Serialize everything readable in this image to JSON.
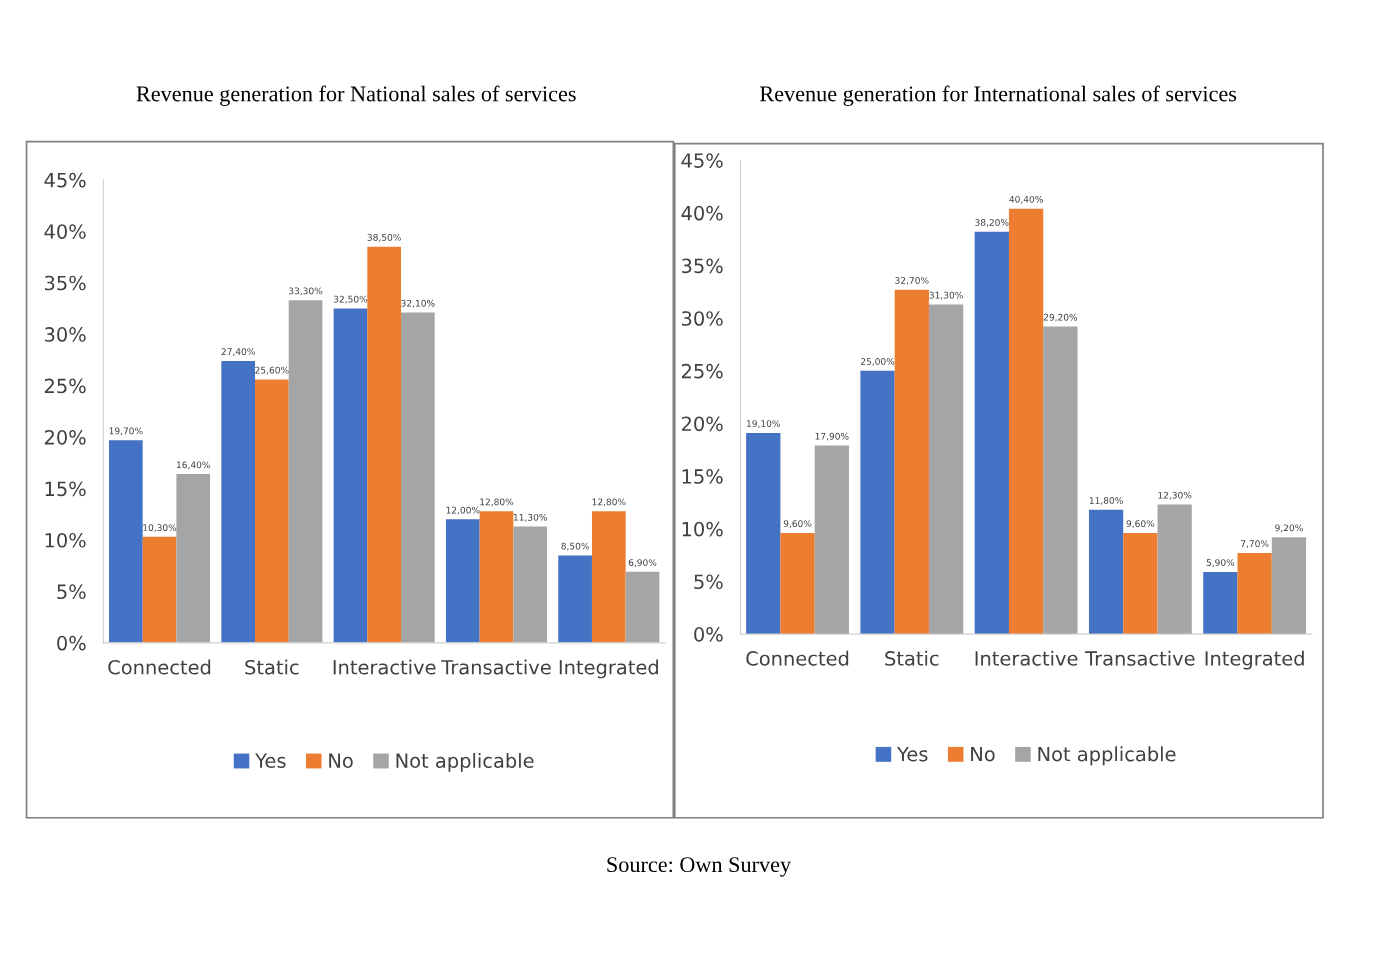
{
  "chart_data": [
    {
      "type": "bar",
      "title": "Revenue generation for National sales of services",
      "categories": [
        "Connected",
        "Static",
        "Interactive",
        "Transactive",
        "Integrated"
      ],
      "ylim": [
        0,
        45
      ],
      "yticks": [
        {
          "value": 0,
          "label": "0%"
        },
        {
          "value": 5,
          "label": "5%"
        },
        {
          "value": 10,
          "label": "10%"
        },
        {
          "value": 15,
          "label": "15%"
        },
        {
          "value": 20,
          "label": "20%"
        },
        {
          "value": 25,
          "label": "25%"
        },
        {
          "value": 30,
          "label": "30%"
        },
        {
          "value": 35,
          "label": "35%"
        },
        {
          "value": 40,
          "label": "40%"
        },
        {
          "value": 45,
          "label": "45%"
        }
      ],
      "grid": false,
      "legend": "bottom",
      "series": [
        {
          "name": "Yes",
          "color": "#4472c4",
          "values": [
            19.7,
            27.4,
            32.5,
            12.0,
            8.5
          ],
          "value_labels": [
            "19,70%",
            "27,40%",
            "32,50%",
            "12,00%",
            "8,50%"
          ]
        },
        {
          "name": "No",
          "color": "#ed7d31",
          "values": [
            10.3,
            25.6,
            38.5,
            12.8,
            12.8
          ],
          "value_labels": [
            "10,30%",
            "25,60%",
            "38,50%",
            "12,80%",
            "12,80%"
          ]
        },
        {
          "name": "Not applicable",
          "color": "#a5a5a5",
          "values": [
            16.4,
            33.3,
            32.1,
            11.3,
            6.9
          ],
          "value_labels": [
            "16,40%",
            "33,30%",
            "32,10%",
            "11,30%",
            "6,90%"
          ]
        }
      ]
    },
    {
      "type": "bar",
      "title": "Revenue generation for International sales of services",
      "categories": [
        "Connected",
        "Static",
        "Interactive",
        "Transactive",
        "Integrated"
      ],
      "ylim": [
        0,
        45
      ],
      "yticks": [
        {
          "value": 0,
          "label": "0%"
        },
        {
          "value": 5,
          "label": "5%"
        },
        {
          "value": 10,
          "label": "10%"
        },
        {
          "value": 15,
          "label": "15%"
        },
        {
          "value": 20,
          "label": "20%"
        },
        {
          "value": 25,
          "label": "25%"
        },
        {
          "value": 30,
          "label": "30%"
        },
        {
          "value": 35,
          "label": "35%"
        },
        {
          "value": 40,
          "label": "40%"
        },
        {
          "value": 45,
          "label": "45%"
        }
      ],
      "grid": false,
      "legend": "bottom",
      "annotations": [
        "Source: Own Survey"
      ],
      "series": [
        {
          "name": "Yes",
          "color": "#4472c4",
          "values": [
            19.1,
            25.0,
            38.2,
            11.8,
            5.9
          ],
          "value_labels": [
            "19,10%",
            "25,00%",
            "38,20%",
            "11,80%",
            "5,90%"
          ]
        },
        {
          "name": "No",
          "color": "#ed7d31",
          "values": [
            9.6,
            32.7,
            40.4,
            9.6,
            7.7
          ],
          "value_labels": [
            "9,60%",
            "32,70%",
            "40,40%",
            "9,60%",
            "7,70%"
          ]
        },
        {
          "name": "Not applicable",
          "color": "#a5a5a5",
          "values": [
            17.9,
            31.3,
            29.2,
            12.3,
            9.2
          ],
          "value_labels": [
            "17,90%",
            "31,30%",
            "29,20%",
            "12,30%",
            "9,20%"
          ]
        }
      ]
    }
  ]
}
